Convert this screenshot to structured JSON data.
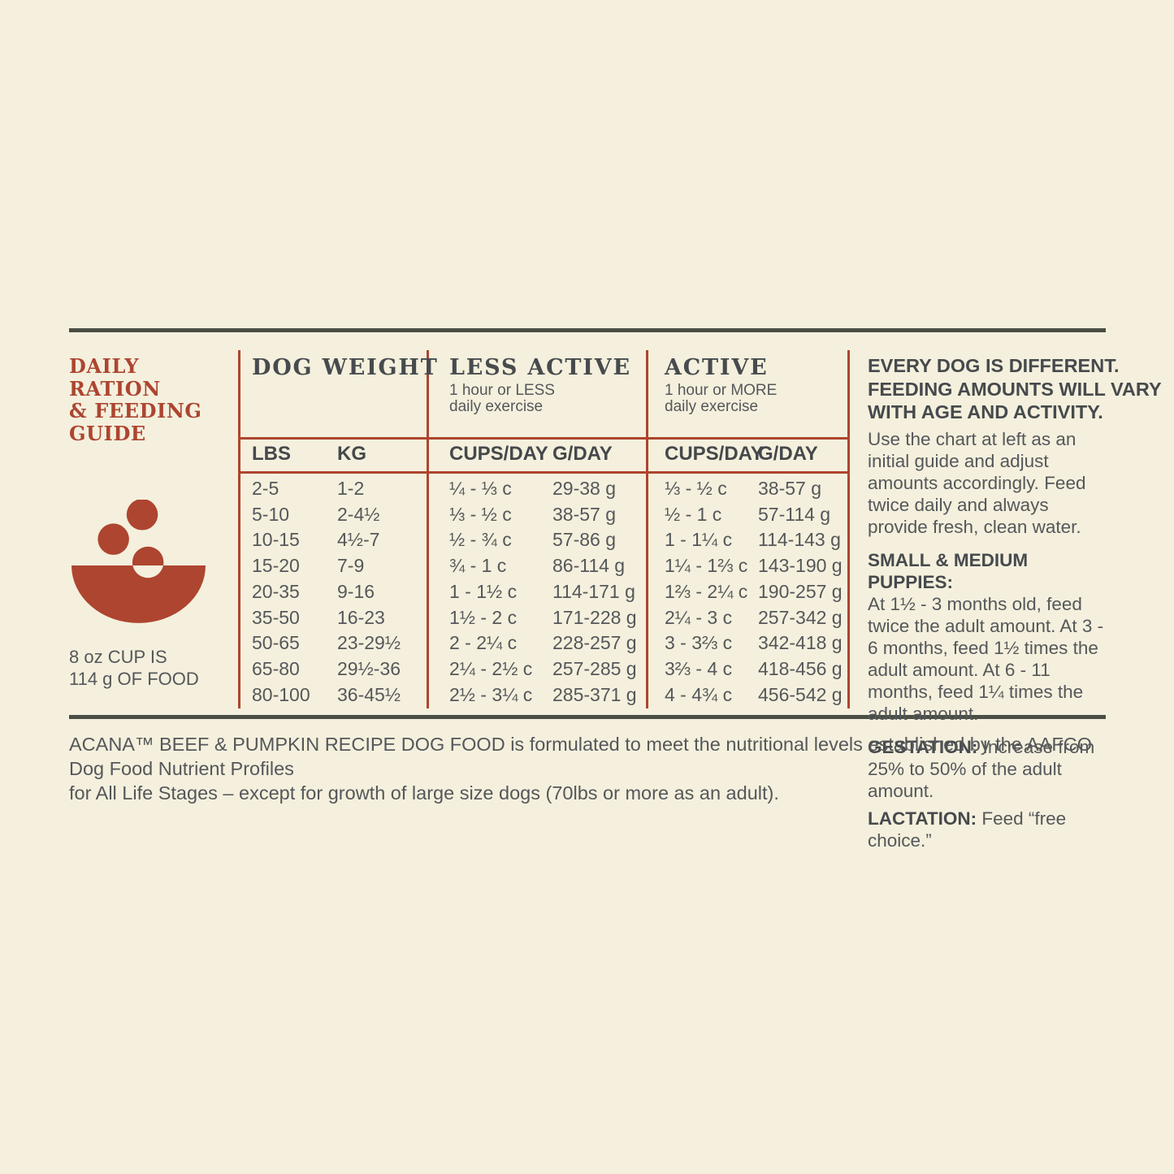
{
  "colors": {
    "background": "#f4f0dd",
    "accent_red": "#ad4530",
    "dark_rule": "#4a4e44",
    "heading_dark": "#474b4e",
    "body_text": "#55575a"
  },
  "left_panel": {
    "title_lines": [
      "DAILY RATION",
      "& FEEDING",
      "GUIDE"
    ],
    "bowl_icon": "bowl-with-kibble-icon",
    "cup_note_lines": [
      "8 oz CUP IS",
      "114 g OF FOOD"
    ]
  },
  "table": {
    "groups": [
      {
        "title": "DOG WEIGHT",
        "subtitle_lines": [
          "",
          ""
        ]
      },
      {
        "title": "LESS ACTIVE",
        "subtitle_lines": [
          "1 hour or LESS",
          "daily exercise"
        ]
      },
      {
        "title": "ACTIVE",
        "subtitle_lines": [
          "1 hour or MORE",
          "daily exercise"
        ]
      }
    ],
    "column_headers": [
      "LBS",
      "KG",
      "CUPS/DAY",
      "G/DAY",
      "CUPS/DAY",
      "G/DAY"
    ],
    "rows": [
      [
        "2-5",
        "1-2",
        "¼ - ⅓ c",
        "29-38 g",
        "⅓ - ½ c",
        "38-57 g"
      ],
      [
        "5-10",
        "2-4½",
        "⅓ - ½ c",
        "38-57 g",
        "½ - 1 c",
        "57-114 g"
      ],
      [
        "10-15",
        "4½-7",
        "½ - ¾ c",
        "57-86 g",
        "1 - 1¼ c",
        "114-143 g"
      ],
      [
        "15-20",
        "7-9",
        "¾ - 1 c",
        "86-114 g",
        "1¼ - 1⅔ c",
        "143-190 g"
      ],
      [
        "20-35",
        "9-16",
        "1 - 1½ c",
        "114-171 g",
        "1⅔ - 2¼ c",
        "190-257 g"
      ],
      [
        "35-50",
        "16-23",
        "1½ - 2 c",
        "171-228 g",
        "2¼ - 3 c",
        "257-342 g"
      ],
      [
        "50-65",
        "23-29½",
        "2 - 2¼ c",
        "228-257 g",
        "3 - 3⅔ c",
        "342-418 g"
      ],
      [
        "65-80",
        "29½-36",
        "2¼ - 2½ c",
        "257-285 g",
        "3⅔ - 4 c",
        "418-456 g"
      ],
      [
        "80-100",
        "36-45½",
        "2½ - 3¼ c",
        "285-371 g",
        "4 - 4¾ c",
        "456-542 g"
      ]
    ]
  },
  "right_panel": {
    "heading_lines": [
      "EVERY DOG IS DIFFERENT.",
      "FEEDING AMOUNTS WILL VARY",
      "WITH AGE AND ACTIVITY."
    ],
    "intro": "Use the chart at left as an initial guide and adjust amounts accordingly. Feed twice daily and always provide fresh, clean water.",
    "puppies_label": "SMALL & MEDIUM PUPPIES:",
    "puppies_text": "At 1½ - 3 months old, feed twice the adult amount. At 3 - 6 months, feed 1½ times the adult amount. At 6 - 11 months, feed 1¼ times the adult amount.",
    "gestation_label": "GESTATION:",
    "gestation_text": " Increase from 25% to 50% of the adult amount.",
    "lactation_label": "LACTATION:",
    "lactation_text": " Feed “free choice.”"
  },
  "footer": {
    "line1": "ACANA™ BEEF & PUMPKIN RECIPE DOG FOOD is formulated to meet the nutritional levels established by the AAFCO Dog Food Nutrient Profiles",
    "line2": "for All Life Stages – except for growth of large size dogs (70lbs or more as an adult)."
  }
}
